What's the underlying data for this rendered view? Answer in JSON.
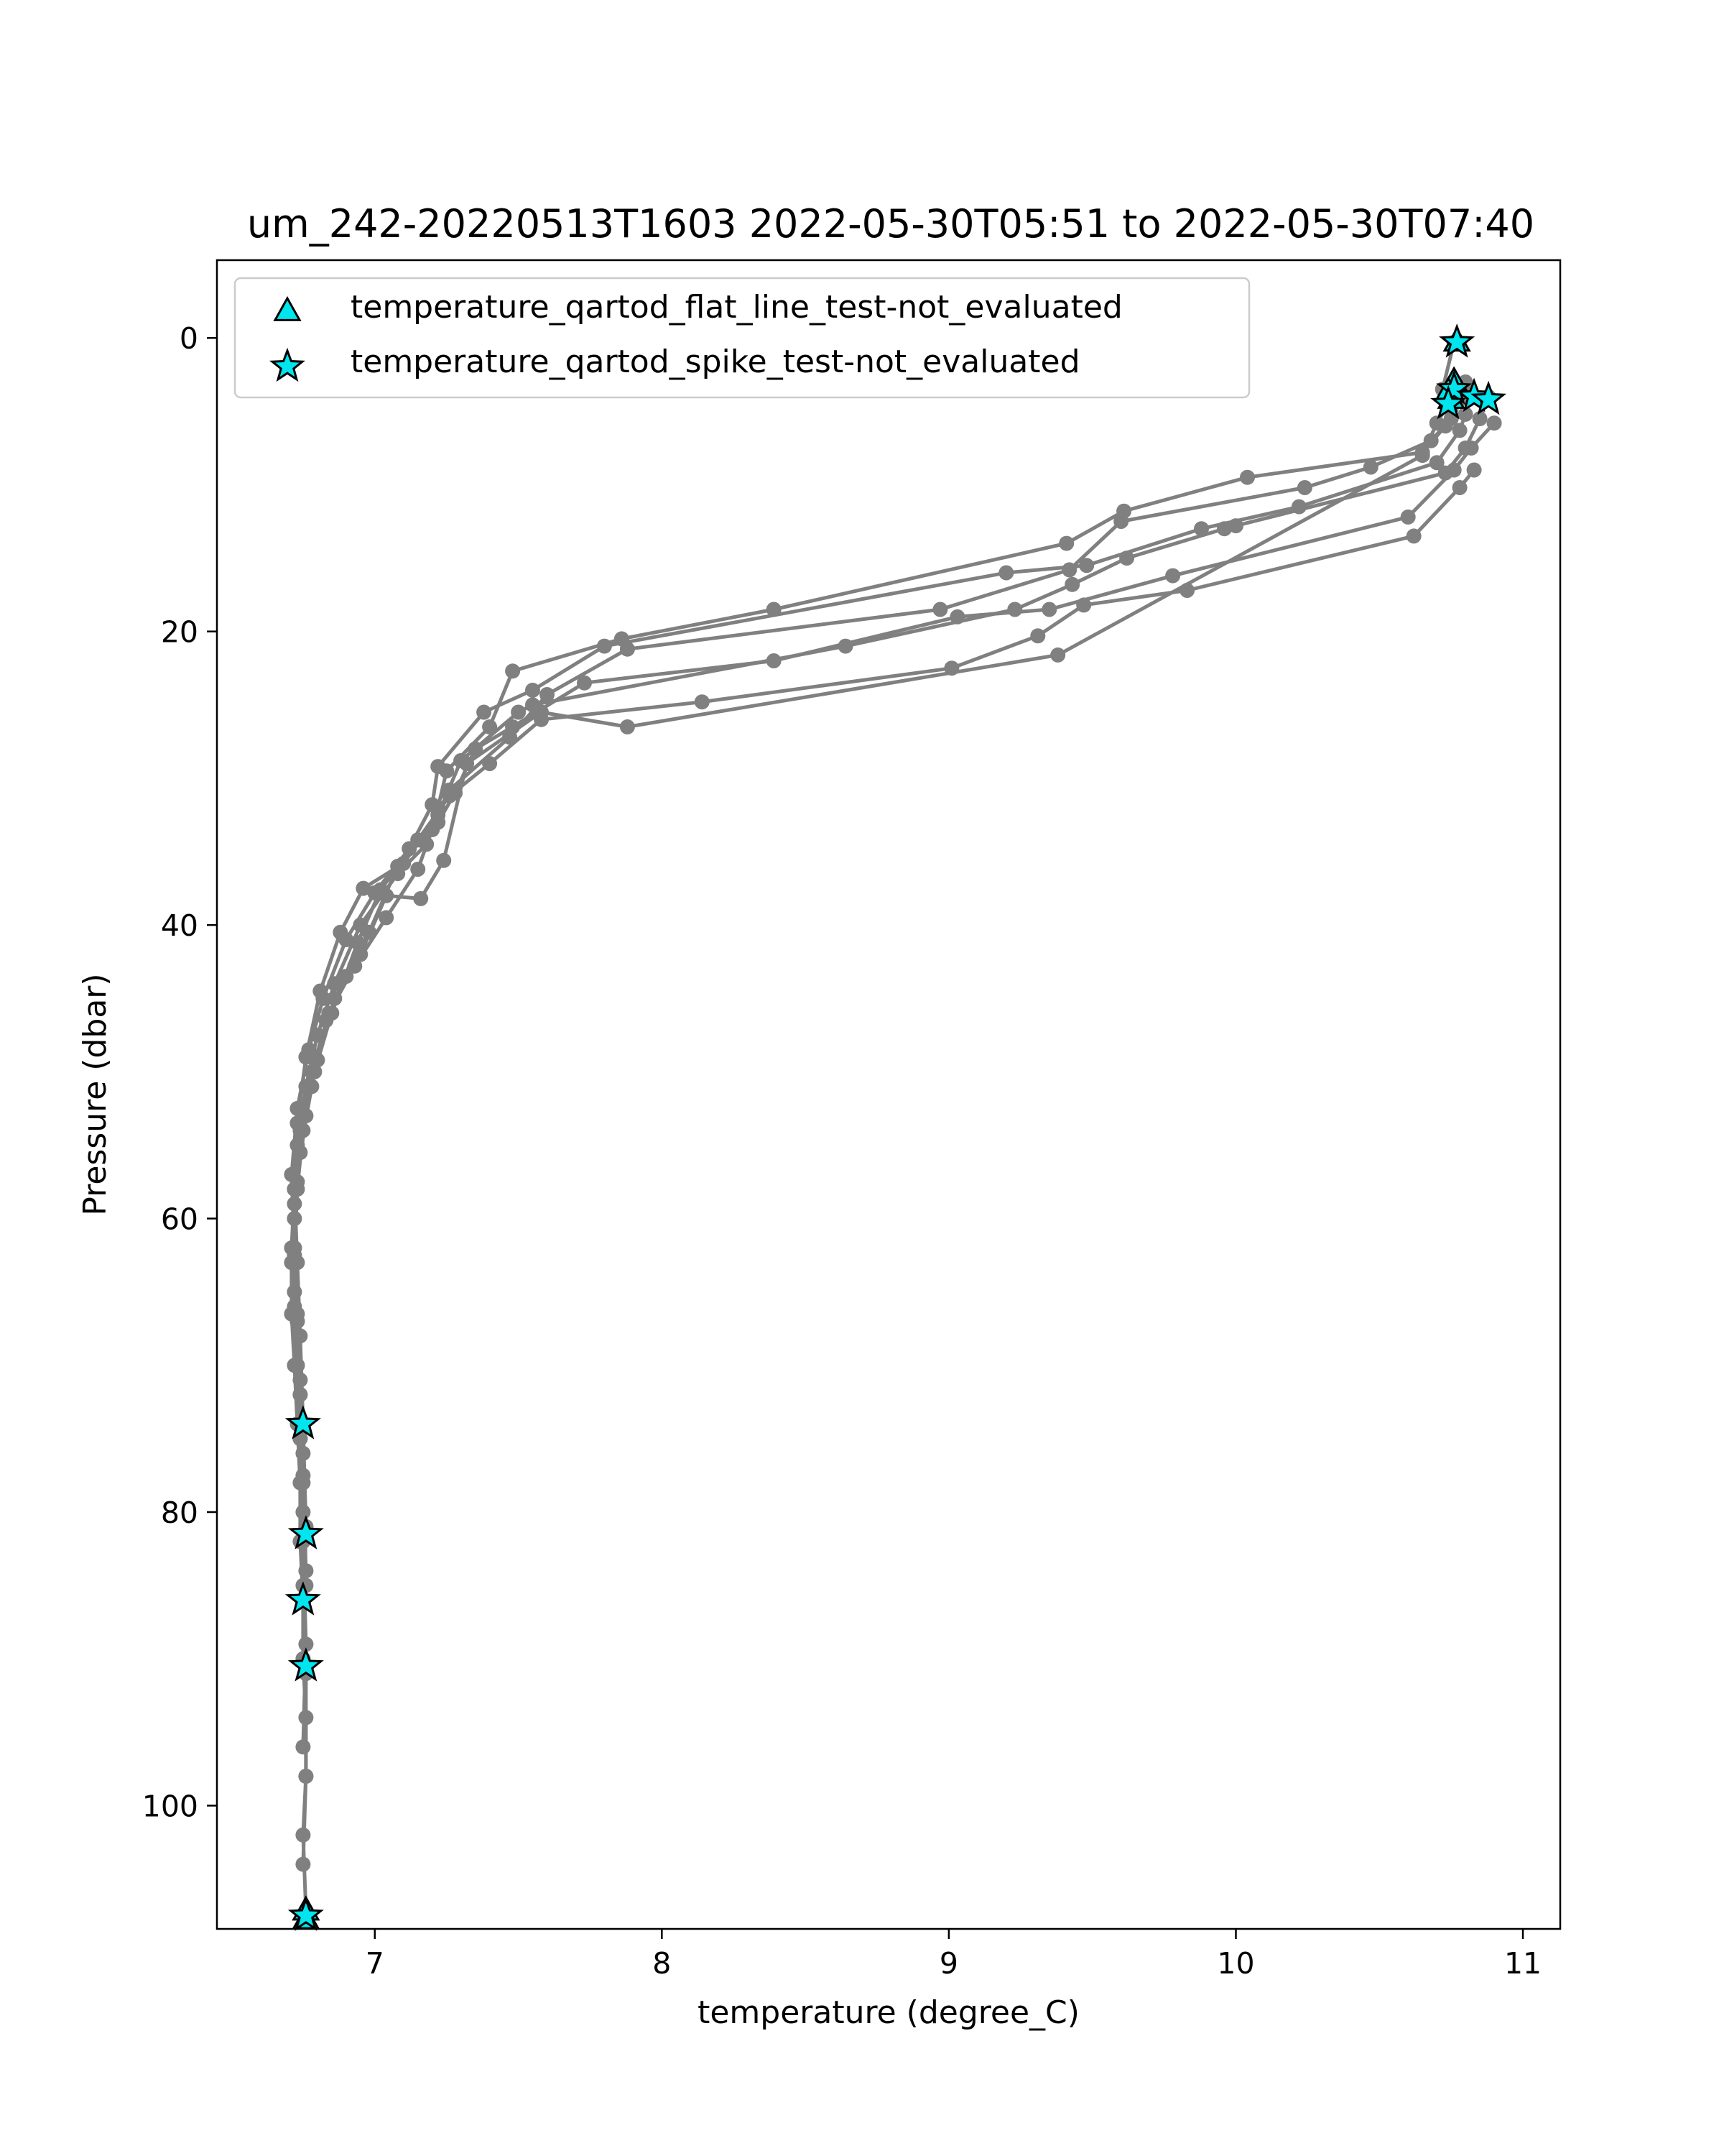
{
  "colors": {
    "profile_line": "#808080",
    "flag_fill": "#00e5ee",
    "flag_edge": "#000000",
    "axes": "#000000",
    "legend_border": "#cccccc",
    "background": "#ffffff"
  },
  "chart_data": {
    "type": "scatter",
    "title": "um_242-20220513T1603 2022-05-30T05:51 to 2022-05-30T07:40",
    "xlabel": "temperature (degree_C)",
    "ylabel": "Pressure (dbar)",
    "xlim": [
      6.45,
      11.13
    ],
    "ylim": [
      108.4,
      -5.3
    ],
    "y_inverted": true,
    "xticks": [
      7,
      8,
      9,
      10,
      11
    ],
    "yticks": [
      0,
      20,
      40,
      60,
      80,
      100
    ],
    "legend_position": "top-left",
    "grid": false,
    "profiles": [
      {
        "x": [
          10.76,
          10.72,
          10.75,
          10.73,
          10.65,
          10.04,
          9.61,
          9.41,
          8.39,
          7.86,
          7.48,
          7.4,
          7.25,
          7.22,
          7.18,
          7.08,
          6.95,
          6.86,
          6.8,
          6.76,
          6.73,
          6.72,
          6.71,
          6.71,
          6.72,
          6.73,
          6.74,
          6.74,
          6.75,
          6.75,
          6.76,
          6.76,
          6.75,
          6.76
        ],
        "y": [
          0.3,
          3.5,
          4.8,
          6.0,
          7.8,
          9.5,
          11.8,
          14.0,
          18.5,
          20.5,
          22.7,
          26.5,
          29.5,
          32.0,
          34.5,
          36.5,
          40.0,
          44.0,
          47.5,
          51.0,
          55.0,
          59.0,
          63.0,
          66.5,
          70.0,
          74.0,
          78.0,
          82.0,
          86.0,
          90.0,
          94.0,
          98.0,
          102.0,
          107.2
        ]
      },
      {
        "x": [
          10.8,
          10.78,
          10.75,
          10.68,
          10.47,
          10.24,
          9.6,
          9.42,
          8.97,
          7.88,
          7.6,
          7.47,
          7.26,
          7.2,
          7.15,
          7.04,
          6.93,
          6.84,
          6.78,
          6.74,
          6.72,
          6.71,
          6.72,
          6.73,
          6.74,
          6.75,
          6.75,
          6.76,
          6.76,
          6.75
        ],
        "y": [
          3.0,
          4.2,
          5.5,
          7.0,
          8.8,
          10.2,
          12.5,
          15.8,
          18.5,
          21.2,
          24.3,
          27.2,
          30.8,
          33.5,
          36.2,
          39.5,
          42.8,
          46.0,
          50.0,
          54.0,
          58.0,
          62.0,
          66.0,
          70.0,
          75.0,
          80.0,
          85.0,
          91.0,
          98.0,
          104.0
        ]
      },
      {
        "x": [
          10.82,
          10.8,
          10.78,
          10.7,
          10.22,
          9.88,
          9.48,
          9.2,
          7.8,
          7.55,
          7.38,
          7.22,
          7.2,
          7.12,
          7.0,
          6.9,
          6.82,
          6.77,
          6.73,
          6.71,
          6.72,
          6.73,
          6.74,
          6.75,
          6.76
        ],
        "y": [
          3.8,
          5.2,
          6.3,
          8.5,
          11.5,
          13.0,
          15.5,
          16.0,
          21.0,
          24.0,
          25.5,
          29.2,
          31.8,
          34.8,
          37.8,
          41.0,
          45.0,
          48.5,
          52.5,
          57.0,
          62.0,
          67.0,
          72.0,
          78.0,
          85.0
        ]
      },
      {
        "x": [
          10.88,
          10.85,
          10.8,
          10.73,
          10.0,
          9.96,
          9.62,
          9.43,
          9.23,
          8.64,
          7.55,
          7.5,
          7.3,
          7.22,
          7.1,
          6.96,
          6.88,
          6.81,
          6.76,
          6.73,
          6.72,
          6.73,
          6.74,
          6.75,
          6.76,
          6.75
        ],
        "y": [
          4.0,
          5.5,
          7.5,
          9.2,
          12.8,
          13.0,
          15.0,
          16.8,
          18.5,
          21.0,
          25.0,
          25.5,
          28.8,
          32.5,
          35.8,
          37.5,
          40.5,
          44.5,
          49.0,
          53.5,
          58.0,
          63.0,
          68.0,
          74.0,
          81.0,
          90.0
        ]
      },
      {
        "x": [
          10.9,
          10.82,
          10.76,
          10.6,
          9.78,
          9.35,
          9.03,
          8.39,
          7.73,
          7.48,
          7.35,
          7.28,
          7.22,
          7.08,
          6.98,
          6.9,
          6.83,
          6.78,
          6.74,
          6.72,
          6.72,
          6.73,
          6.74,
          6.75,
          6.76,
          6.75
        ],
        "y": [
          5.8,
          7.5,
          9.0,
          12.2,
          16.2,
          18.5,
          19.0,
          22.0,
          23.5,
          26.5,
          28.0,
          31.0,
          33.0,
          36.0,
          40.5,
          43.5,
          46.5,
          51.0,
          55.5,
          60.0,
          65.0,
          70.0,
          75.0,
          82.0,
          89.0,
          96.0
        ]
      },
      {
        "x": [
          10.83,
          10.78,
          10.62,
          9.83,
          9.47,
          9.31,
          9.01,
          8.14,
          7.58,
          7.4,
          7.26,
          7.15,
          7.02,
          6.94,
          6.85,
          6.79,
          6.75,
          6.73,
          6.72,
          6.73,
          6.74,
          6.75,
          6.76
        ],
        "y": [
          9.0,
          10.2,
          13.5,
          17.2,
          18.2,
          20.3,
          22.5,
          24.8,
          26.0,
          29.0,
          31.2,
          34.2,
          37.6,
          41.2,
          46.0,
          50.0,
          54.0,
          58.0,
          62.5,
          67.0,
          72.0,
          77.5,
          84.0
        ]
      },
      {
        "x": [
          10.74,
          10.7,
          10.65,
          9.38,
          7.88,
          7.58,
          7.32,
          7.24,
          7.16,
          7.04,
          6.95,
          6.86,
          6.8,
          6.76,
          6.73,
          6.72,
          6.73,
          6.74,
          6.75,
          6.76
        ],
        "y": [
          4.5,
          5.8,
          8.0,
          21.6,
          26.5,
          25.5,
          29.0,
          35.6,
          38.2,
          38.0,
          42.0,
          45.0,
          49.2,
          53.0,
          57.5,
          62.0,
          66.5,
          71.0,
          76.0,
          81.0
        ]
      }
    ],
    "series": [
      {
        "name": "temperature_qartod_flat_line_test-not_evaluated",
        "marker": "triangle",
        "x": [
          10.77,
          10.76,
          10.74,
          10.75,
          6.76,
          6.76
        ],
        "y": [
          0.3,
          3.0,
          3.7,
          4.2,
          107.2,
          107.8
        ]
      },
      {
        "name": "temperature_qartod_spike_test-not_evaluated",
        "marker": "star",
        "x": [
          10.77,
          10.76,
          10.83,
          10.88,
          10.74,
          6.75,
          6.76,
          6.75,
          6.76,
          6.76
        ],
        "y": [
          0.3,
          3.5,
          4.0,
          4.2,
          4.5,
          74.0,
          81.5,
          86.0,
          90.5,
          107.5
        ]
      }
    ]
  }
}
